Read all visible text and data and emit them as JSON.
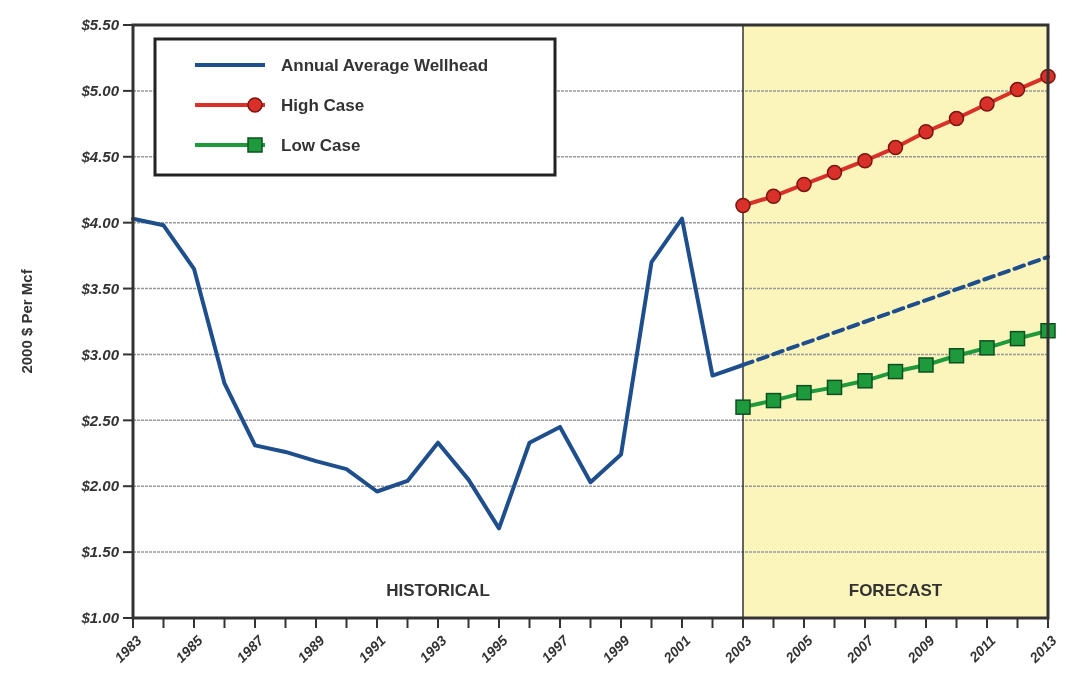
{
  "chart_data": {
    "type": "line",
    "ylabel": "2000 $ Per Mcf",
    "xlim": [
      1983,
      2013
    ],
    "ylim": [
      1,
      5.5
    ],
    "xticks": [
      1983,
      {
        "value": 1984,
        "label": null
      },
      1985,
      {
        "value": 1986,
        "label": null
      },
      1987,
      {
        "value": 1988,
        "label": null
      },
      1989,
      {
        "value": 1990,
        "label": null
      },
      1991,
      {
        "value": 1992,
        "label": null
      },
      1993,
      {
        "value": 1994,
        "label": null
      },
      1995,
      {
        "value": 1996,
        "label": null
      },
      1997,
      {
        "value": 1998,
        "label": null
      },
      1999,
      {
        "value": 2000,
        "label": null
      },
      2001,
      {
        "value": 2002,
        "label": null
      },
      2003,
      {
        "value": 2004,
        "label": null
      },
      2005,
      {
        "value": 2006,
        "label": null
      },
      2007,
      {
        "value": 2008,
        "label": null
      },
      2009,
      {
        "value": 2010,
        "label": null
      },
      2011,
      {
        "value": 2012,
        "label": null
      },
      2013
    ],
    "yticks": [
      {
        "value": 1,
        "label": "$1.00"
      },
      {
        "value": 1.5,
        "label": "$1.50"
      },
      {
        "value": 2,
        "label": "$2.00"
      },
      {
        "value": 2.5,
        "label": "$2.50"
      },
      {
        "value": 3,
        "label": "$3.00"
      },
      {
        "value": 3.5,
        "label": "$3.50"
      },
      {
        "value": 4,
        "label": "$4.00"
      },
      {
        "value": 4.5,
        "label": "$4.50"
      },
      {
        "value": 5,
        "label": "$5.00"
      },
      {
        "value": 5.5,
        "label": "$5.50"
      }
    ],
    "grid": "y",
    "legend": "top left",
    "annotations": [
      "HISTORICAL"
    ],
    "bands": [
      {
        "axis": "x",
        "from": 2003,
        "to": 2013,
        "label": "FORECAST",
        "color": "#fcf5bb"
      }
    ],
    "ref_lines": [
      {
        "axis": "x",
        "value": 2003,
        "color": "#333333"
      }
    ],
    "series": [
      {
        "name": "Annual Average Wellhead",
        "color": "#1f4e8c",
        "marker": "none",
        "line_style": "solid",
        "x": [
          1983,
          1984,
          1985,
          1986,
          1987,
          1988,
          1989,
          1990,
          1991,
          1992,
          1993,
          1994,
          1995,
          1996,
          1997,
          1998,
          1999,
          2000,
          2001,
          2002,
          2003
        ],
        "values": [
          4.03,
          3.98,
          3.65,
          2.78,
          2.31,
          2.26,
          2.19,
          2.13,
          1.96,
          2.04,
          2.33,
          2.05,
          1.68,
          2.33,
          2.45,
          2.03,
          2.24,
          3.7,
          4.03,
          2.84,
          2.92
        ]
      },
      {
        "color": "#1f4e8c",
        "marker": "none",
        "line_style": "dashed",
        "x": [
          2003,
          2013
        ],
        "values": [
          2.92,
          3.74
        ]
      },
      {
        "name": "High Case",
        "color": "#d9302a",
        "marker": "circle",
        "line_style": "solid",
        "x": [
          2003,
          2004,
          2005,
          2006,
          2007,
          2008,
          2009,
          2010,
          2011,
          2012,
          2013
        ],
        "values": [
          4.13,
          4.2,
          4.29,
          4.38,
          4.47,
          4.57,
          4.69,
          4.79,
          4.9,
          5.01,
          5.11
        ]
      },
      {
        "name": "Low Case",
        "color": "#1e9a3c",
        "marker": "square",
        "line_style": "solid",
        "x": [
          2003,
          2004,
          2005,
          2006,
          2007,
          2008,
          2009,
          2010,
          2011,
          2012,
          2013
        ],
        "values": [
          2.6,
          2.65,
          2.71,
          2.75,
          2.8,
          2.87,
          2.92,
          2.99,
          3.05,
          3.12,
          3.18
        ]
      }
    ]
  }
}
